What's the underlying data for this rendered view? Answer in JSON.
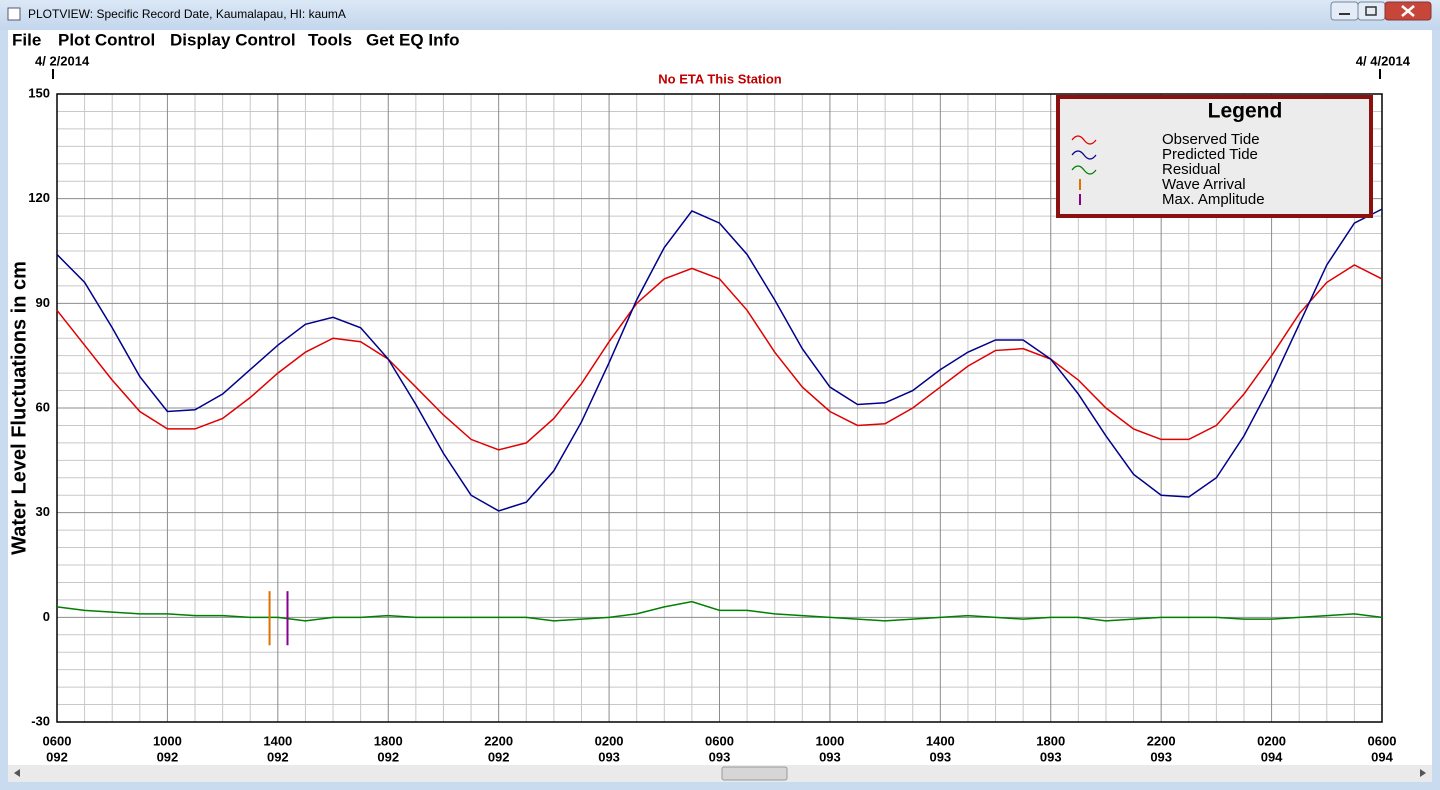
{
  "window": {
    "title": "PLOTVIEW: Specific Record Date, Kaumalapau, HI: kaumA"
  },
  "menu": [
    "File",
    "Plot Control",
    "Display Control",
    "Tools",
    "Get EQ Info"
  ],
  "chart_data": {
    "type": "line",
    "subtitle": "No ETA This Station",
    "start_date_label": "4/ 2/2014",
    "end_date_label": "4/ 4/2014",
    "y_label": "Water Level Fluctuations in cm",
    "legend_title": "Legend",
    "grid": true,
    "x": [
      0,
      1,
      2,
      3,
      4,
      5,
      6,
      7,
      8,
      9,
      10,
      11,
      12,
      13,
      14,
      15,
      16,
      17,
      18,
      19,
      20,
      21,
      22,
      23,
      24,
      25,
      26,
      27,
      28,
      29,
      30,
      31,
      32,
      33,
      34,
      35,
      36,
      37,
      38,
      39,
      40,
      41,
      42,
      43,
      44,
      45,
      46,
      47,
      48
    ],
    "xlim": [
      0,
      48
    ],
    "xticks": [
      {
        "value": 0,
        "label": "0600",
        "day": "092"
      },
      {
        "value": 4,
        "label": "1000",
        "day": "092"
      },
      {
        "value": 8,
        "label": "1400",
        "day": "092"
      },
      {
        "value": 12,
        "label": "1800",
        "day": "092"
      },
      {
        "value": 16,
        "label": "2200",
        "day": "092"
      },
      {
        "value": 20,
        "label": "0200",
        "day": "093"
      },
      {
        "value": 24,
        "label": "0600",
        "day": "093"
      },
      {
        "value": 28,
        "label": "1000",
        "day": "093"
      },
      {
        "value": 32,
        "label": "1400",
        "day": "093"
      },
      {
        "value": 36,
        "label": "1800",
        "day": "093"
      },
      {
        "value": 40,
        "label": "2200",
        "day": "093"
      },
      {
        "value": 44,
        "label": "0200",
        "day": "094"
      },
      {
        "value": 48,
        "label": "0600",
        "day": "094"
      }
    ],
    "ylim": [
      -30,
      150
    ],
    "yticks": [
      -30,
      0,
      30,
      60,
      90,
      120,
      150
    ],
    "series": [
      {
        "name": "Observed Tide",
        "color": "#e00000",
        "values": [
          88,
          78,
          68,
          59,
          54,
          54,
          57,
          63,
          70,
          76,
          80,
          79,
          74,
          66,
          58,
          51,
          48,
          50,
          57,
          67,
          79,
          90,
          97,
          100,
          97,
          88,
          76,
          66,
          59,
          55,
          55.5,
          60,
          66,
          72,
          76.5,
          77,
          74,
          68,
          60,
          54,
          51,
          51,
          55,
          64,
          75,
          87,
          96,
          101,
          97
        ]
      },
      {
        "name": "Predicted Tide",
        "color": "#00008b",
        "values": [
          104,
          96,
          83,
          69,
          59,
          59.5,
          64,
          71,
          78,
          84,
          86,
          83,
          74,
          61,
          47,
          35,
          30.5,
          33,
          42,
          56,
          73,
          91,
          106,
          116.5,
          113,
          104,
          91,
          77,
          66,
          61,
          61.5,
          65,
          71,
          76,
          79.5,
          79.5,
          74,
          64,
          52,
          41,
          35,
          34.5,
          40,
          52,
          67,
          84,
          101,
          113,
          117
        ]
      },
      {
        "name": "Residual",
        "color": "#008000",
        "values": [
          3,
          2,
          1.5,
          1,
          1,
          0.5,
          0.5,
          0,
          0,
          -1,
          0,
          0,
          0.5,
          0,
          0,
          0,
          0,
          0,
          -1,
          -0.5,
          0,
          1,
          3,
          4.5,
          2,
          2,
          1,
          0.5,
          0,
          -0.5,
          -1,
          -0.5,
          0,
          0.5,
          0,
          -0.5,
          0,
          0,
          -1,
          -0.5,
          0,
          0,
          0,
          -0.5,
          -0.5,
          0,
          0.5,
          1,
          0
        ]
      }
    ],
    "markers": [
      {
        "name": "Wave Arrival",
        "color": "#e07000",
        "x": 7.7,
        "span": [
          -8,
          7.5
        ]
      },
      {
        "name": "Max. Amplitude",
        "color": "#8b008b",
        "x": 8.35,
        "span": [
          -8,
          7.5
        ]
      }
    ]
  }
}
